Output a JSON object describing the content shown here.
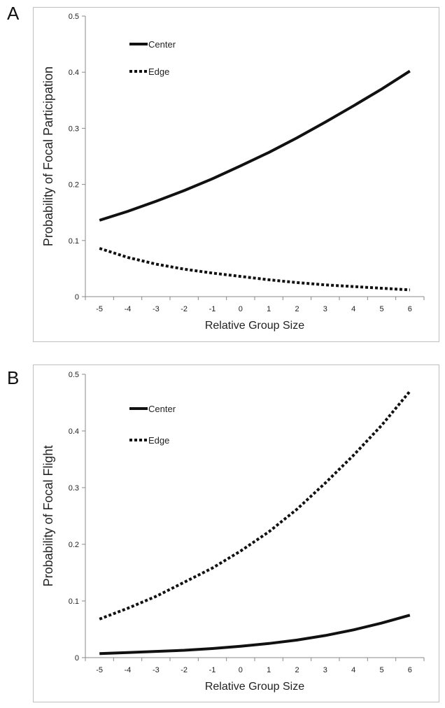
{
  "panels": [
    {
      "letter": "A",
      "chart_data": {
        "type": "line",
        "xlabel": "Relative Group Size",
        "ylabel": "Probability of Focal Participation",
        "xlim": [
          -5,
          6
        ],
        "ylim": [
          0,
          0.5
        ],
        "x_ticks": [
          -5,
          -4,
          -3,
          -2,
          -1,
          0,
          1,
          2,
          3,
          4,
          5,
          6
        ],
        "y_ticks": [
          0,
          0.1,
          0.2,
          0.3,
          0.4,
          0.5
        ],
        "y_tick_labels": [
          "0",
          "0.1",
          "0.2",
          "0.3",
          "0.4",
          "0.5"
        ],
        "grid": false,
        "legend_position": "top-left",
        "x": [
          -5,
          -4,
          -3,
          -2,
          -1,
          0,
          1,
          2,
          3,
          4,
          5,
          6
        ],
        "series": [
          {
            "name": "Center",
            "style": "solid",
            "values": [
              0.136,
              0.152,
              0.17,
              0.189,
              0.21,
              0.233,
              0.257,
              0.283,
              0.311,
              0.34,
              0.37,
              0.402
            ]
          },
          {
            "name": "Edge",
            "style": "dotted",
            "values": [
              0.086,
              0.07,
              0.058,
              0.049,
              0.042,
              0.036,
              0.03,
              0.025,
              0.021,
              0.018,
              0.015,
              0.012
            ]
          }
        ]
      }
    },
    {
      "letter": "B",
      "chart_data": {
        "type": "line",
        "xlabel": "Relative Group Size",
        "ylabel": "Probability of Focal Flight",
        "xlim": [
          -5,
          6
        ],
        "ylim": [
          0,
          0.5
        ],
        "x_ticks": [
          -5,
          -4,
          -3,
          -2,
          -1,
          0,
          1,
          2,
          3,
          4,
          5,
          6
        ],
        "y_ticks": [
          0,
          0.1,
          0.2,
          0.3,
          0.4,
          0.5
        ],
        "y_tick_labels": [
          "0",
          "0.1",
          "0.2",
          "0.3",
          "0.4",
          "0.5"
        ],
        "grid": false,
        "legend_position": "top-left",
        "x": [
          -5,
          -4,
          -3,
          -2,
          -1,
          0,
          1,
          2,
          3,
          4,
          5,
          6
        ],
        "series": [
          {
            "name": "Center",
            "style": "solid",
            "values": [
              0.007,
              0.009,
              0.011,
              0.013,
              0.016,
              0.02,
              0.025,
              0.031,
              0.039,
              0.049,
              0.061,
              0.075
            ]
          },
          {
            "name": "Edge",
            "style": "dotted",
            "values": [
              0.068,
              0.087,
              0.108,
              0.133,
              0.158,
              0.188,
              0.222,
              0.262,
              0.308,
              0.357,
              0.41,
              0.47
            ]
          }
        ]
      }
    }
  ]
}
